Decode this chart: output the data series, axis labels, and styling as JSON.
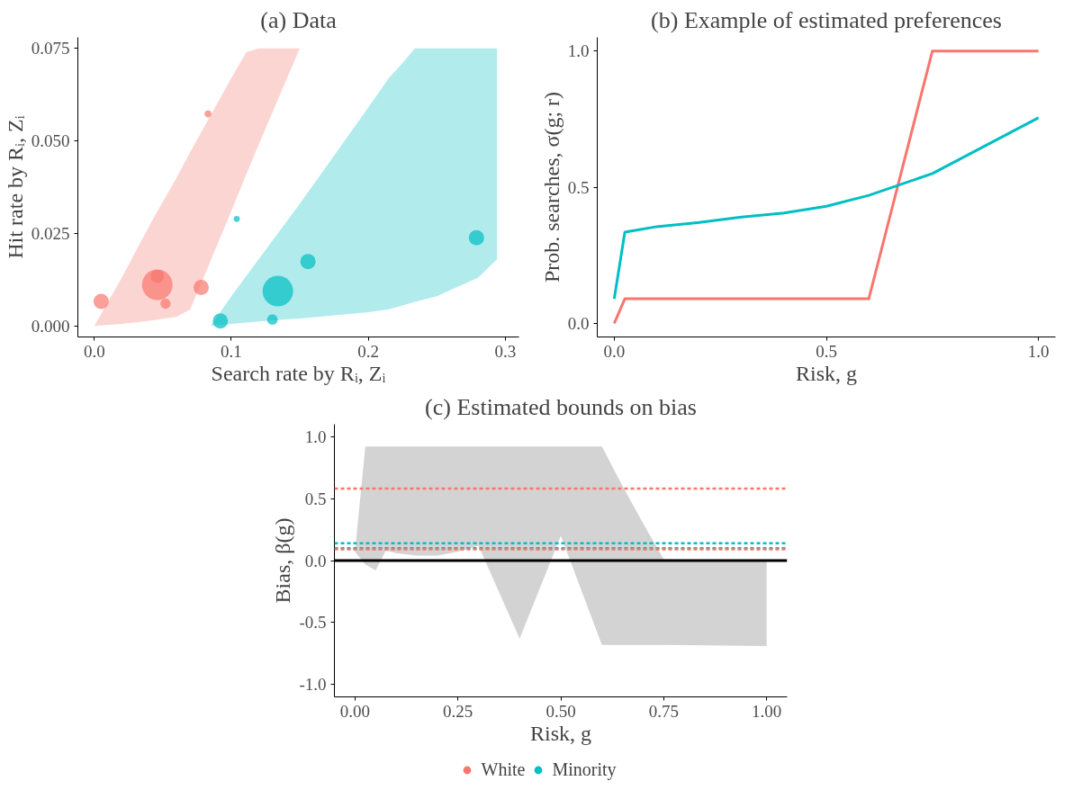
{
  "chart_data": [
    {
      "type": "bubble",
      "title": "(a) Data",
      "xlabel": "Search rate by Rᵢ, Zᵢ",
      "ylabel": "Hit rate by Rᵢ, Zᵢ",
      "xlim": [
        -0.012,
        0.31
      ],
      "ylim": [
        -0.003,
        0.078
      ],
      "xticks": [
        {
          "value": 0,
          "label": "0.0"
        },
        {
          "value": 0.1,
          "label": "0.1"
        },
        {
          "value": 0.2,
          "label": "0.2"
        },
        {
          "value": 0.3,
          "label": "0.3"
        }
      ],
      "yticks": [
        {
          "value": 0,
          "label": "0.000"
        },
        {
          "value": 0.025,
          "label": "0.025"
        },
        {
          "value": 0.05,
          "label": "0.050"
        },
        {
          "value": 0.075,
          "label": "0.075"
        }
      ],
      "grid": false,
      "legend": "bottom",
      "series": [
        {
          "type": "area",
          "color": "#fbd5d2",
          "x": [
            0,
            0.02,
            0.043,
            0.06,
            0.07,
            0.1,
            0.111,
            0.12,
            0.15
          ],
          "values": [
            null,
            null,
            null,
            null,
            null,
            null,
            null,
            null,
            null
          ],
          "lower": [
            0,
            0.0005,
            0.0015,
            0.0025,
            0.0044,
            0.031,
            0.041,
            0.049,
            0.075
          ],
          "upper": [
            0,
            0.013,
            0.029,
            0.04,
            0.047,
            0.067,
            0.074,
            0.075,
            0.075
          ]
        },
        {
          "type": "area",
          "color": "#b2ebec",
          "x": [
            0.085,
            0.1,
            0.13,
            0.15,
            0.2,
            0.215,
            0.225,
            0.234,
            0.25,
            0.28,
            0.294
          ],
          "values": [
            null,
            null,
            null,
            null,
            null,
            null,
            null,
            null,
            null,
            null,
            null
          ],
          "lower": [
            0,
            0.0005,
            0.0015,
            0.002,
            0.0037,
            0.0045,
            0.0055,
            0.0065,
            0.008,
            0.013,
            0.018
          ],
          "upper": [
            0,
            0.008,
            0.023,
            0.033,
            0.059,
            0.067,
            0.071,
            0.075,
            0.075,
            0.075,
            0.075
          ]
        },
        {
          "type": "bubble",
          "name": "White",
          "color": "#f8766d",
          "x": [
            0.005,
            0.046,
            0.046,
            0.052,
            0.078,
            0.083
          ],
          "values": [
            0.0066,
            0.0111,
            0.0134,
            0.006,
            0.0104,
            0.0573
          ],
          "sizes": [
            0.25,
            1,
            0.19,
            0.11,
            0.25,
            0.05
          ]
        },
        {
          "type": "bubble",
          "name": "Minority",
          "color": "#00bfc4",
          "x": [
            0.092,
            0.104,
            0.13,
            0.134,
            0.156,
            0.279
          ],
          "values": [
            0.0013,
            0.0289,
            0.0017,
            0.0094,
            0.0174,
            0.0238
          ],
          "sizes": [
            0.25,
            0.04,
            0.12,
            1,
            0.25,
            0.25
          ]
        }
      ]
    },
    {
      "type": "line",
      "title": "(b) Example of estimated preferences",
      "xlabel": "Risk, g",
      "ylabel": "Prob. searches, σ(g; r)",
      "xlim": [
        -0.04,
        1.04
      ],
      "ylim": [
        -0.05,
        1.05
      ],
      "xticks": [
        {
          "value": 0,
          "label": "0.0"
        },
        {
          "value": 0.5,
          "label": "0.5"
        },
        {
          "value": 1,
          "label": "1.0"
        }
      ],
      "yticks": [
        {
          "value": 0,
          "label": "0.0"
        },
        {
          "value": 0.5,
          "label": "0.5"
        },
        {
          "value": 1,
          "label": "1.0"
        }
      ],
      "grid": false,
      "line_style": "solid",
      "series": [
        {
          "color": "#f8766d",
          "x": [
            0,
            0.025,
            0.6,
            0.75,
            1.0
          ],
          "values": [
            0,
            0.09,
            0.09,
            1.0,
            1.0
          ]
        },
        {
          "color": "#00bfc4",
          "x": [
            0,
            0.025,
            0.1,
            0.2,
            0.3,
            0.4,
            0.5,
            0.6,
            0.75,
            1.0
          ],
          "values": [
            0.09,
            0.335,
            0.355,
            0.37,
            0.39,
            0.405,
            0.43,
            0.47,
            0.55,
            0.755
          ]
        }
      ]
    },
    {
      "type": "area",
      "title": "(c) Estimated bounds on bias",
      "xlabel": "Risk, g",
      "ylabel": "Bias, β(g)",
      "xlim": [
        -0.05,
        1.05
      ],
      "ylim": [
        -1.1,
        1.1
      ],
      "xticks": [
        {
          "value": 0,
          "label": "0.00"
        },
        {
          "value": 0.25,
          "label": "0.25"
        },
        {
          "value": 0.5,
          "label": "0.50"
        },
        {
          "value": 0.75,
          "label": "0.75"
        },
        {
          "value": 1,
          "label": "1.00"
        }
      ],
      "yticks": [
        {
          "value": -1,
          "label": "-1.0"
        },
        {
          "value": -0.5,
          "label": "-0.5"
        },
        {
          "value": 0,
          "label": "0.0"
        },
        {
          "value": 0.5,
          "label": "0.5"
        },
        {
          "value": 1,
          "label": "1.0"
        }
      ],
      "grid": false,
      "series": [
        {
          "color": "#d3d3d3",
          "x": [
            0,
            0.025,
            0.05,
            0.075,
            0.1,
            0.15,
            0.2,
            0.25,
            0.3,
            0.4,
            0.5,
            0.6,
            0.65,
            0.7,
            0.75,
            1.0
          ],
          "lower": [
            0.07,
            -0.03,
            -0.08,
            0.08,
            0.06,
            0.04,
            0.04,
            0.07,
            0.12,
            -0.63,
            0.2,
            -0.68,
            -0.68,
            -0.68,
            -0.68,
            -0.69
          ],
          "values": [
            null,
            null,
            null,
            null,
            null,
            null,
            null,
            null,
            null,
            null,
            null,
            null,
            null,
            null,
            null,
            null
          ],
          "upper": [
            0.07,
            0.92,
            0.92,
            0.92,
            0.92,
            0.92,
            0.92,
            0.92,
            0.92,
            0.92,
            0.92,
            0.92,
            0.6,
            0.3,
            0.01,
            0.0
          ]
        }
      ],
      "ref_lines": [
        {
          "axis": "y",
          "value": 0.58,
          "color": "#f8766d",
          "line_style": "dashed"
        },
        {
          "axis": "y",
          "value": 0.14,
          "color": "#00bfc4",
          "line_style": "dashed"
        },
        {
          "axis": "y",
          "value": 0.1,
          "color": "#00bfc4",
          "line_style": "dashed"
        },
        {
          "axis": "y",
          "value": 0.09,
          "color": "#f8766d",
          "line_style": "dashed"
        },
        {
          "axis": "y",
          "value": 0,
          "color": "#000000",
          "line_style": "solid"
        }
      ]
    }
  ]
}
